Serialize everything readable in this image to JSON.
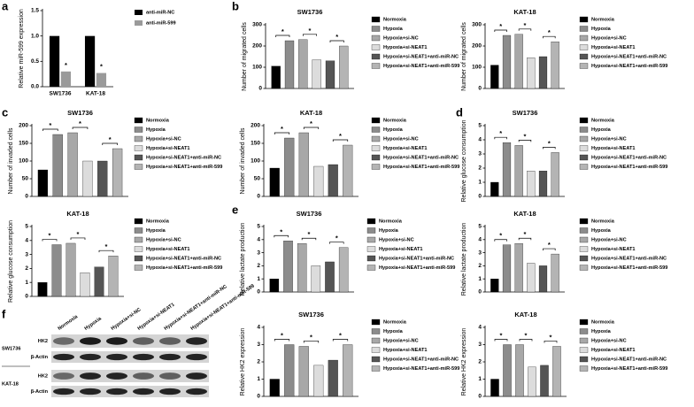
{
  "chart_data": [
    {
      "type": "grouped_bar",
      "panel": "a",
      "y_label": "Relative miR-599 expression",
      "categories": [
        "SW1736",
        "KAT-18"
      ],
      "series": [
        {
          "name": "anti-miR-NC",
          "color": "#000000",
          "values": [
            1.0,
            1.0
          ]
        },
        {
          "name": "anti-miR-599",
          "color": "#9a9a9a",
          "values": [
            0.3,
            0.27
          ]
        }
      ],
      "ylim": [
        0,
        1.5
      ],
      "yticks": [
        {
          "value": 0,
          "label": "0.0"
        },
        0.5,
        {
          "value": 1,
          "label": "1.0"
        },
        1.5
      ],
      "significance": [
        "*",
        "*"
      ]
    },
    {
      "type": "bar",
      "panel": "b",
      "title": "SW1736",
      "y_label": "Number of migrated cells",
      "categories": [
        "Normoxia",
        "Hypoxia",
        "Hypoxia+si-NC",
        "Hypoxia+si-NEAT1",
        "Hypoxia+si-NEAT1+anti-miR-NC",
        "Hypoxia+si-NEAT1+anti-miR-599"
      ],
      "colors": [
        "#000000",
        "#8c8c8c",
        "#a8a8a8",
        "#dcdcdc",
        "#555555",
        "#b4b4b4"
      ],
      "values": [
        105,
        225,
        230,
        135,
        130,
        200
      ],
      "ylim": [
        0,
        300
      ],
      "yticks": [
        0,
        100,
        200,
        300
      ],
      "significance": [
        "*",
        "*",
        "*"
      ]
    },
    {
      "type": "bar",
      "title": "KAT-18",
      "y_label": "Number of migrated cells",
      "categories": [
        "Normoxia",
        "Hypoxia",
        "Hypoxia+si-NC",
        "Hypoxia+si-NEAT1",
        "Hypoxia+si-NEAT1+anti-miR-NC",
        "Hypoxia+si-NEAT1+anti-miR-599"
      ],
      "colors": [
        "#000000",
        "#8c8c8c",
        "#a8a8a8",
        "#dcdcdc",
        "#555555",
        "#b4b4b4"
      ],
      "values": [
        110,
        250,
        255,
        145,
        150,
        220
      ],
      "ylim": [
        0,
        300
      ],
      "yticks": [
        0,
        100,
        200,
        300
      ],
      "significance": [
        "*",
        "*",
        "*"
      ]
    },
    {
      "type": "bar",
      "panel": "c",
      "title": "SW1736",
      "y_label": "Number of invaded cells",
      "categories": [
        "Normoxia",
        "Hypoxia",
        "Hypoxia+si-NC",
        "Hypoxia+si-NEAT1",
        "Hypoxia+si-NEAT1+anti-miR-NC",
        "Hypoxia+si-NEAT1+anti-miR-599"
      ],
      "colors": [
        "#000000",
        "#8c8c8c",
        "#a8a8a8",
        "#dcdcdc",
        "#555555",
        "#b4b4b4"
      ],
      "values": [
        75,
        175,
        180,
        100,
        100,
        135
      ],
      "ylim": [
        0,
        200
      ],
      "yticks": [
        0,
        50,
        100,
        150,
        200
      ],
      "significance": [
        "*",
        "*",
        "*"
      ]
    },
    {
      "type": "bar",
      "title": "KAT-18",
      "y_label": "Number of invaded cells",
      "categories": [
        "Normoxia",
        "Hypoxia",
        "Hypoxia+si-NC",
        "Hypoxia+si-NEAT1",
        "Hypoxia+si-NEAT1+anti-miR-NC",
        "Hypoxia+si-NEAT1+anti-miR-599"
      ],
      "colors": [
        "#000000",
        "#8c8c8c",
        "#a8a8a8",
        "#dcdcdc",
        "#555555",
        "#b4b4b4"
      ],
      "values": [
        80,
        165,
        180,
        85,
        90,
        145
      ],
      "ylim": [
        0,
        200
      ],
      "yticks": [
        0,
        50,
        100,
        150,
        200
      ],
      "significance": [
        "*",
        "*",
        "*"
      ]
    },
    {
      "type": "bar",
      "panel": "d",
      "title": "SW1736",
      "y_label": "Relative glucose consumption",
      "categories": [
        "Normoxia",
        "Hypoxia",
        "Hypoxia+si-NC",
        "Hypoxia+si-NEAT1",
        "Hypoxia+si-NEAT1+anti-miR-NC",
        "Hypoxia+si-NEAT1+anti-miR-599"
      ],
      "colors": [
        "#000000",
        "#8c8c8c",
        "#a8a8a8",
        "#dcdcdc",
        "#555555",
        "#b4b4b4"
      ],
      "values": [
        1.0,
        3.8,
        3.6,
        1.8,
        1.8,
        3.1
      ],
      "ylim": [
        0,
        5
      ],
      "yticks": [
        0,
        1,
        2,
        3,
        4,
        5
      ],
      "significance": [
        "*",
        "*",
        "*"
      ]
    },
    {
      "type": "bar",
      "title": "KAT-18",
      "y_label": "Relative glucose consumption",
      "categories": [
        "Normoxia",
        "Hypoxia",
        "Hypoxia+si-NC",
        "Hypoxia+si-NEAT1",
        "Hypoxia+si-NEAT1+anti-miR-NC",
        "Hypoxia+si-NEAT1+anti-miR-599"
      ],
      "colors": [
        "#000000",
        "#8c8c8c",
        "#a8a8a8",
        "#dcdcdc",
        "#555555",
        "#b4b4b4"
      ],
      "values": [
        1.0,
        3.7,
        3.8,
        1.7,
        2.1,
        2.9
      ],
      "ylim": [
        0,
        5
      ],
      "yticks": [
        0,
        1,
        2,
        3,
        4,
        5
      ],
      "significance": [
        "*",
        "*",
        "*"
      ]
    },
    {
      "type": "bar",
      "panel": "e",
      "title": "SW1736",
      "y_label": "Relative lactate production",
      "categories": [
        "Normoxia",
        "Hypoxia",
        "Hypoxia+si-NC",
        "Hypoxia+si-NEAT1",
        "Hypoxia+si-NEAT1+anti-miR-NC",
        "Hypoxia+si-NEAT1+anti-miR-599"
      ],
      "colors": [
        "#000000",
        "#8c8c8c",
        "#a8a8a8",
        "#dcdcdc",
        "#555555",
        "#b4b4b4"
      ],
      "values": [
        1.0,
        3.9,
        3.7,
        2.0,
        2.3,
        3.4
      ],
      "ylim": [
        0,
        5
      ],
      "yticks": [
        0,
        1,
        2,
        3,
        4,
        5
      ],
      "significance": [
        "*",
        "*",
        "*"
      ]
    },
    {
      "type": "bar",
      "title": "KAT-18",
      "y_label": "Relative lactate production",
      "categories": [
        "Normoxia",
        "Hypoxia",
        "Hypoxia+si-NC",
        "Hypoxia+si-NEAT1",
        "Hypoxia+si-NEAT1+anti-miR-NC",
        "Hypoxia+si-NEAT1+anti-miR-599"
      ],
      "colors": [
        "#000000",
        "#8c8c8c",
        "#a8a8a8",
        "#dcdcdc",
        "#555555",
        "#b4b4b4"
      ],
      "values": [
        1.0,
        3.6,
        3.7,
        2.2,
        2.0,
        2.9
      ],
      "ylim": [
        0,
        5
      ],
      "yticks": [
        0,
        1,
        2,
        3,
        4,
        5
      ],
      "significance": [
        "*",
        "*",
        "*"
      ]
    },
    {
      "type": "bar",
      "title": "SW1736",
      "y_label": "Relative HK2 expression",
      "categories": [
        "Normoxia",
        "Hypoxia",
        "Hypoxia+si-NC",
        "Hypoxia+si-NEAT1",
        "Hypoxia+si-NEAT1+anti-miR-NC",
        "Hypoxia+si-NEAT1+anti-miR-599"
      ],
      "colors": [
        "#000000",
        "#8c8c8c",
        "#a8a8a8",
        "#dcdcdc",
        "#555555",
        "#b4b4b4"
      ],
      "values": [
        1.0,
        3.0,
        2.9,
        1.8,
        2.1,
        3.0
      ],
      "ylim": [
        0,
        4
      ],
      "yticks": [
        0,
        1,
        2,
        3,
        4
      ],
      "significance": [
        "*",
        "*",
        "*"
      ]
    },
    {
      "type": "bar",
      "title": "KAT-18",
      "y_label": "Relative HK2 expression",
      "categories": [
        "Normoxia",
        "Hypoxia",
        "Hypoxia+si-NC",
        "Hypoxia+si-NEAT1",
        "Hypoxia+si-NEAT1+anti-miR-NC",
        "Hypoxia+si-NEAT1+anti-miR-599"
      ],
      "colors": [
        "#000000",
        "#8c8c8c",
        "#a8a8a8",
        "#dcdcdc",
        "#555555",
        "#b4b4b4"
      ],
      "values": [
        1.0,
        3.0,
        3.0,
        1.7,
        1.8,
        2.9
      ],
      "ylim": [
        0,
        4
      ],
      "yticks": [
        0,
        1,
        2,
        3,
        4
      ],
      "significance": [
        "*",
        "*",
        "*"
      ]
    }
  ],
  "blot": {
    "panel": "f",
    "columns": [
      "Normoxia",
      "Hypoxia",
      "Hypoxia+si-NC",
      "Hypoxia+si-NEAT1",
      "Hypoxia+si-NEAT1+anti-miR-NC",
      "Hypoxia+si-NEAT1+anti-miR-599"
    ],
    "cell_lines": [
      "SW1736",
      "KAT-18"
    ],
    "bands": [
      "HK2",
      "β-Actin"
    ]
  }
}
